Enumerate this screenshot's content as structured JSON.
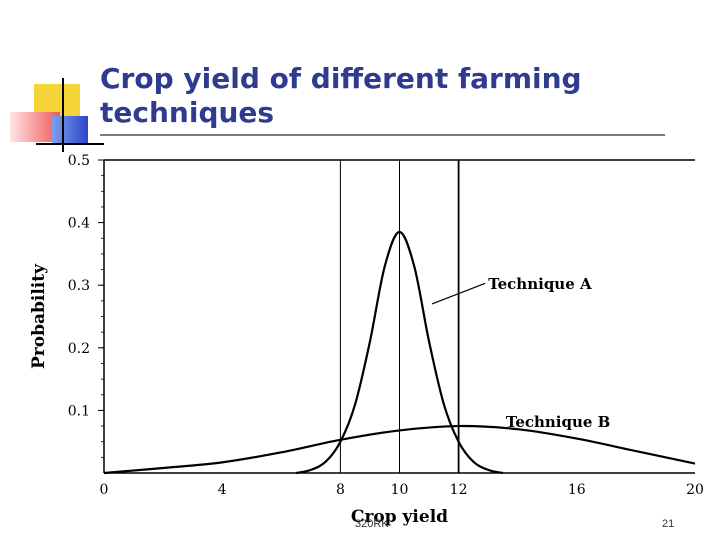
{
  "slide": {
    "title": "Crop yield of different farming techniques",
    "footer_text": "320RK",
    "page_number": "21"
  },
  "chart_data": {
    "type": "line",
    "xlabel": "Crop yield",
    "ylabel": "Probability",
    "xlim": [
      0,
      20
    ],
    "ylim": [
      0,
      0.5
    ],
    "x_ticks": [
      "0",
      "4",
      "8",
      "10",
      "12",
      "16",
      "20"
    ],
    "y_ticks": [
      "0.5",
      "0.4",
      "0.3",
      "0.2",
      "0.1"
    ],
    "reference_lines_x": [
      8,
      10,
      12
    ],
    "series": [
      {
        "name": "Technique A",
        "x": [
          6.5,
          7,
          7.5,
          8,
          8.5,
          9,
          9.5,
          10,
          10.5,
          11,
          11.5,
          12,
          12.5,
          13,
          13.5
        ],
        "y": [
          0.0,
          0.005,
          0.018,
          0.05,
          0.11,
          0.21,
          0.33,
          0.385,
          0.33,
          0.21,
          0.11,
          0.05,
          0.018,
          0.005,
          0.0
        ]
      },
      {
        "name": "Technique B",
        "x": [
          0,
          2,
          4,
          6,
          8,
          10,
          12,
          14,
          16,
          18,
          20
        ],
        "y": [
          0.0,
          0.008,
          0.017,
          0.033,
          0.053,
          0.068,
          0.075,
          0.07,
          0.055,
          0.035,
          0.015
        ]
      }
    ]
  }
}
